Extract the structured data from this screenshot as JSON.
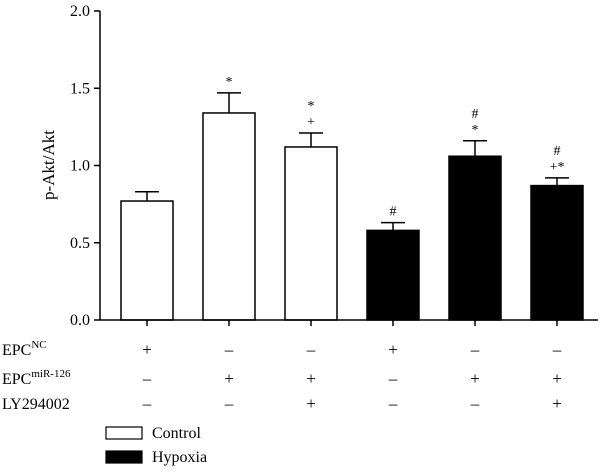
{
  "chart_data": {
    "type": "bar",
    "ylabel": "p-Akt/Akt",
    "ylim": [
      0,
      2.0
    ],
    "yticks": [
      "0.0",
      "0.5",
      "1.0",
      "1.5",
      "2.0"
    ],
    "grid": false,
    "bars": [
      {
        "group": "Control",
        "value": 0.77,
        "error": 0.06,
        "marks": []
      },
      {
        "group": "Control",
        "value": 1.34,
        "error": 0.13,
        "marks": [
          "*"
        ]
      },
      {
        "group": "Control",
        "value": 1.12,
        "error": 0.09,
        "marks": [
          "+",
          "*"
        ]
      },
      {
        "group": "Hypoxia",
        "value": 0.58,
        "error": 0.05,
        "marks": [
          "#"
        ]
      },
      {
        "group": "Hypoxia",
        "value": 1.06,
        "error": 0.1,
        "marks": [
          "*",
          "#"
        ]
      },
      {
        "group": "Hypoxia",
        "value": 0.87,
        "error": 0.05,
        "marks": [
          "+*",
          "#"
        ]
      }
    ],
    "conditions": [
      {
        "name": "EPC",
        "sup": "NC",
        "values": [
          "+",
          "–",
          "–",
          "+",
          "–",
          "–"
        ]
      },
      {
        "name": "EPC",
        "sup": "miR-126",
        "values": [
          "–",
          "+",
          "+",
          "–",
          "+",
          "+"
        ]
      },
      {
        "name": "LY294002",
        "sup": "",
        "values": [
          "–",
          "–",
          "+",
          "–",
          "–",
          "+"
        ]
      }
    ],
    "legend": [
      {
        "label": "Control",
        "color": "#ffffff"
      },
      {
        "label": "Hypoxia",
        "color": "#000000"
      }
    ],
    "legend_position": "bottom-left"
  }
}
